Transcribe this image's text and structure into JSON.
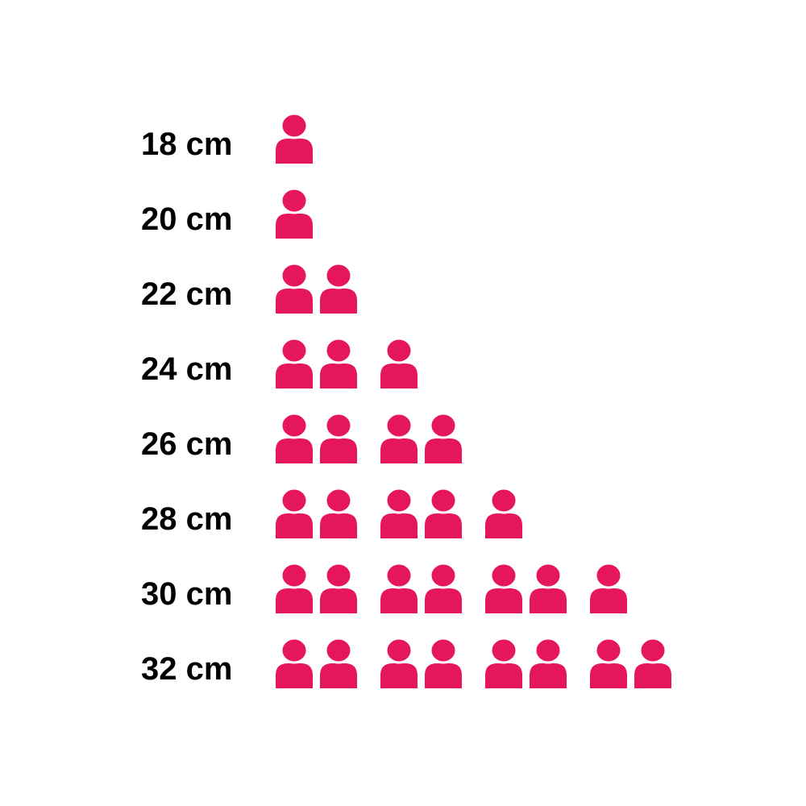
{
  "page": {
    "background_color": "#ffffff"
  },
  "chart_data": {
    "type": "pictogram",
    "title": "",
    "xlabel": "",
    "ylabel": "",
    "categories": [
      "18 cm",
      "20 cm",
      "22 cm",
      "24 cm",
      "26 cm",
      "28 cm",
      "30 cm",
      "32 cm"
    ],
    "values": [
      1,
      1,
      2,
      3,
      4,
      5,
      7,
      8
    ],
    "icon": "person-icon",
    "icon_color": "#E5165C",
    "label_color": "#000000",
    "icon_group_size": 2,
    "legend": "none",
    "grid": "off"
  }
}
